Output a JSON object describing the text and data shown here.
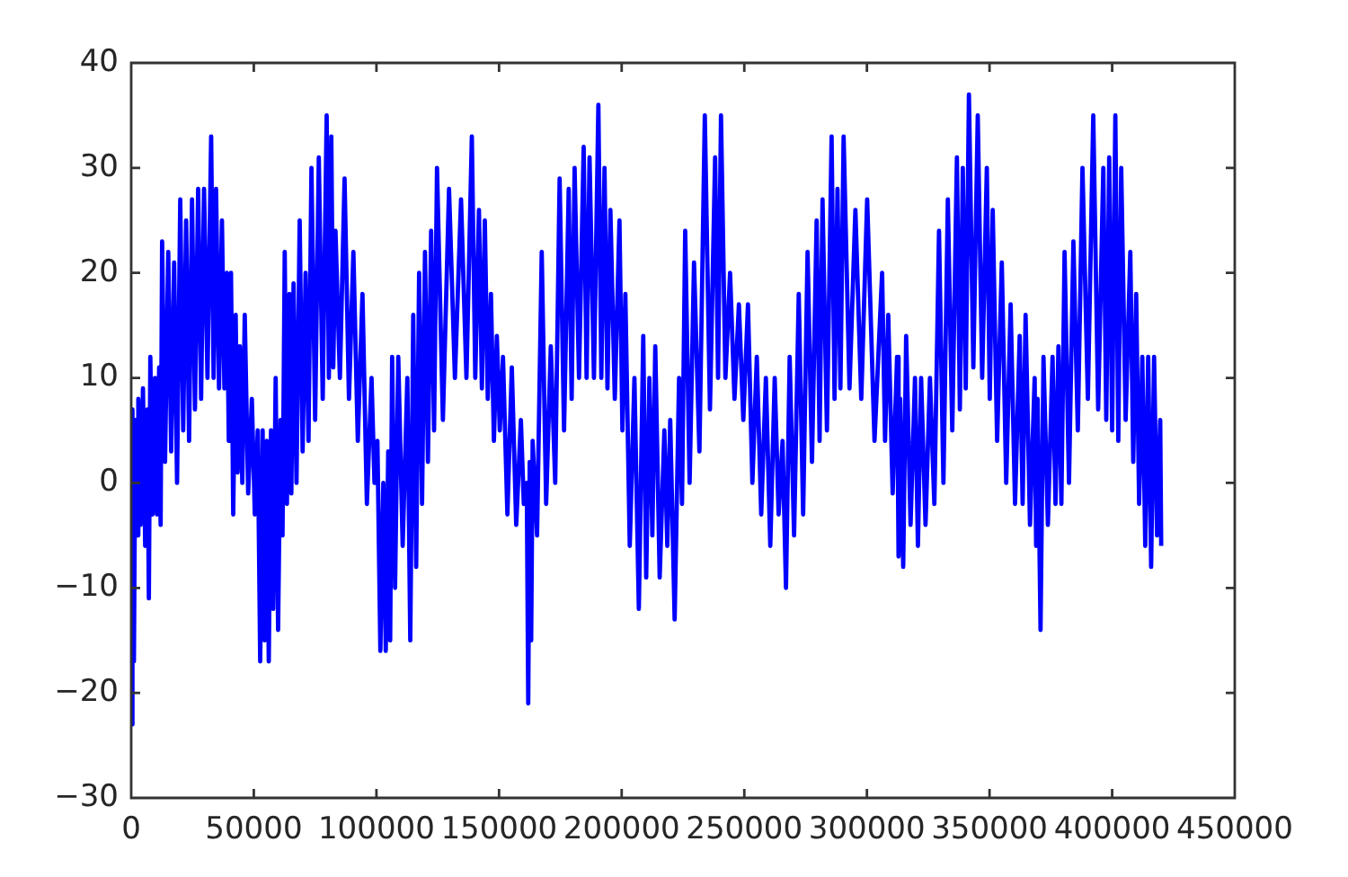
{
  "chart_data": {
    "type": "line",
    "x": [
      0,
      300,
      700,
      1100,
      1700,
      2300,
      2900,
      3800,
      4800,
      5700,
      6600,
      7200,
      7800,
      8700,
      9700,
      10500,
      11400,
      12000,
      12600,
      13800,
      15100,
      16300,
      17500,
      18700,
      20000,
      21200,
      22400,
      23600,
      24800,
      26000,
      27300,
      28500,
      29700,
      31100,
      32600,
      33600,
      34600,
      35800,
      37000,
      38000,
      39000,
      39800,
      40700,
      41600,
      42600,
      43400,
      44300,
      45300,
      46300,
      47700,
      49200,
      50400,
      51600,
      52600,
      53600,
      54400,
      55300,
      56100,
      57000,
      57900,
      58900,
      59900,
      60900,
      61700,
      62600,
      63500,
      64500,
      65300,
      66200,
      67400,
      68700,
      69900,
      71100,
      72300,
      73500,
      75000,
      76500,
      78100,
      79700,
      80600,
      81600,
      82400,
      83300,
      85100,
      87000,
      88800,
      90600,
      92400,
      94300,
      96100,
      98000,
      99200,
      100400,
      101600,
      102800,
      103800,
      104800,
      105600,
      106400,
      107600,
      108900,
      110700,
      112600,
      113800,
      115000,
      116200,
      117400,
      118600,
      119800,
      121000,
      122300,
      123500,
      124700,
      127100,
      129600,
      132000,
      134500,
      136700,
      138900,
      140300,
      141800,
      143000,
      144200,
      145400,
      146700,
      147900,
      149100,
      150300,
      151600,
      153400,
      155200,
      157000,
      158900,
      160100,
      161300,
      161900,
      162500,
      163100,
      163700,
      165500,
      167400,
      169200,
      171100,
      172900,
      174700,
      176500,
      178400,
      179600,
      180800,
      182600,
      184500,
      185700,
      186900,
      188700,
      190500,
      191700,
      193000,
      194200,
      195400,
      197200,
      199100,
      200300,
      201500,
      203300,
      205200,
      207000,
      208800,
      210000,
      211300,
      212500,
      213700,
      215500,
      217400,
      218600,
      219800,
      221600,
      223400,
      224600,
      225900,
      227700,
      229500,
      231700,
      233900,
      236000,
      238100,
      239300,
      240500,
      242300,
      244200,
      246000,
      247800,
      249600,
      251500,
      253300,
      255100,
      256900,
      258800,
      260600,
      262400,
      264000,
      265600,
      267000,
      268500,
      270300,
      272200,
      274000,
      275800,
      277600,
      279500,
      280700,
      281900,
      283700,
      285600,
      286800,
      288000,
      289200,
      290500,
      292900,
      295300,
      297700,
      300100,
      303100,
      306200,
      307400,
      308700,
      310500,
      312300,
      312900,
      313600,
      314800,
      316000,
      317800,
      319600,
      320800,
      322100,
      323900,
      325700,
      327500,
      329400,
      331200,
      333000,
      334800,
      336700,
      337900,
      339100,
      340300,
      341600,
      343400,
      345200,
      347000,
      348900,
      350100,
      351300,
      353100,
      355000,
      356800,
      358600,
      360400,
      362300,
      363500,
      364700,
      366500,
      368400,
      369000,
      369600,
      370800,
      372000,
      373800,
      375700,
      376900,
      378100,
      379300,
      380600,
      382400,
      384200,
      386000,
      387900,
      390100,
      392300,
      394300,
      396400,
      397600,
      398800,
      400000,
      401300,
      402500,
      403700,
      405500,
      407400,
      408600,
      409800,
      411000,
      412300,
      413500,
      414700,
      415900,
      417100,
      418300,
      419600,
      420000
    ],
    "series": [
      {
        "color": "#0000ff",
        "values": [
          5,
          -23,
          7,
          -17,
          6,
          -5,
          8,
          -4,
          9,
          -6,
          7,
          -11,
          12,
          -3,
          10,
          -3,
          11,
          -4,
          23,
          2,
          22,
          3,
          21,
          0,
          27,
          5,
          25,
          4,
          27,
          7,
          28,
          8,
          28,
          10,
          33,
          10,
          28,
          9,
          25,
          9,
          20,
          4,
          20,
          -3,
          16,
          1,
          13,
          0,
          16,
          -1,
          8,
          -3,
          5,
          -17,
          5,
          -15,
          4,
          -17,
          5,
          -12,
          10,
          -14,
          6,
          -5,
          22,
          -2,
          18,
          -1,
          19,
          0,
          25,
          3,
          20,
          4,
          30,
          6,
          31,
          8,
          35,
          10,
          33,
          11,
          24,
          10,
          29,
          8,
          22,
          4,
          18,
          -2,
          10,
          0,
          4,
          -16,
          0,
          -16,
          3,
          -15,
          12,
          -10,
          12,
          -6,
          10,
          -15,
          16,
          -8,
          20,
          -2,
          22,
          2,
          24,
          5,
          30,
          6,
          28,
          10,
          27,
          10,
          33,
          10,
          26,
          9,
          25,
          8,
          18,
          4,
          14,
          5,
          12,
          -3,
          11,
          -4,
          6,
          -2,
          0,
          -21,
          2,
          -15,
          4,
          -5,
          22,
          -2,
          13,
          0,
          29,
          5,
          28,
          8,
          30,
          10,
          32,
          10,
          31,
          10,
          36,
          10,
          30,
          9,
          26,
          8,
          25,
          5,
          18,
          -6,
          10,
          -12,
          14,
          -9,
          10,
          -5,
          13,
          -9,
          5,
          -6,
          6,
          -13,
          10,
          -2,
          24,
          0,
          21,
          3,
          35,
          7,
          31,
          10,
          35,
          10,
          20,
          8,
          17,
          6,
          17,
          0,
          12,
          -3,
          10,
          -6,
          10,
          -3,
          4,
          -10,
          12,
          -5,
          18,
          -3,
          22,
          2,
          25,
          4,
          27,
          5,
          33,
          8,
          28,
          9,
          33,
          9,
          26,
          8,
          27,
          4,
          20,
          4,
          16,
          -1,
          12,
          -7,
          8,
          -8,
          14,
          -4,
          10,
          -6,
          10,
          -4,
          10,
          -2,
          24,
          0,
          27,
          5,
          31,
          7,
          30,
          9,
          37,
          11,
          35,
          10,
          30,
          8,
          26,
          4,
          21,
          0,
          17,
          -2,
          14,
          -2,
          16,
          -4,
          10,
          -6,
          8,
          -14,
          12,
          -4,
          12,
          -2,
          13,
          -2,
          22,
          0,
          23,
          5,
          30,
          8,
          35,
          7,
          30,
          6,
          31,
          5,
          35,
          4,
          30,
          6,
          22,
          2,
          18,
          -2,
          12,
          -6,
          12,
          -8,
          12,
          -5,
          6,
          -6
        ]
      }
    ],
    "xlim": [
      0,
      450000
    ],
    "xticks": [
      0,
      50000,
      100000,
      150000,
      200000,
      250000,
      300000,
      350000,
      400000,
      450000
    ],
    "ylim": [
      -30,
      40
    ],
    "yticks": [
      {
        "value": -30,
        "label": "−30"
      },
      {
        "value": -20,
        "label": "−20"
      },
      {
        "value": -10,
        "label": "−10"
      },
      0,
      10,
      20,
      30,
      40
    ],
    "marker": "none",
    "grid": false,
    "legend": false
  }
}
